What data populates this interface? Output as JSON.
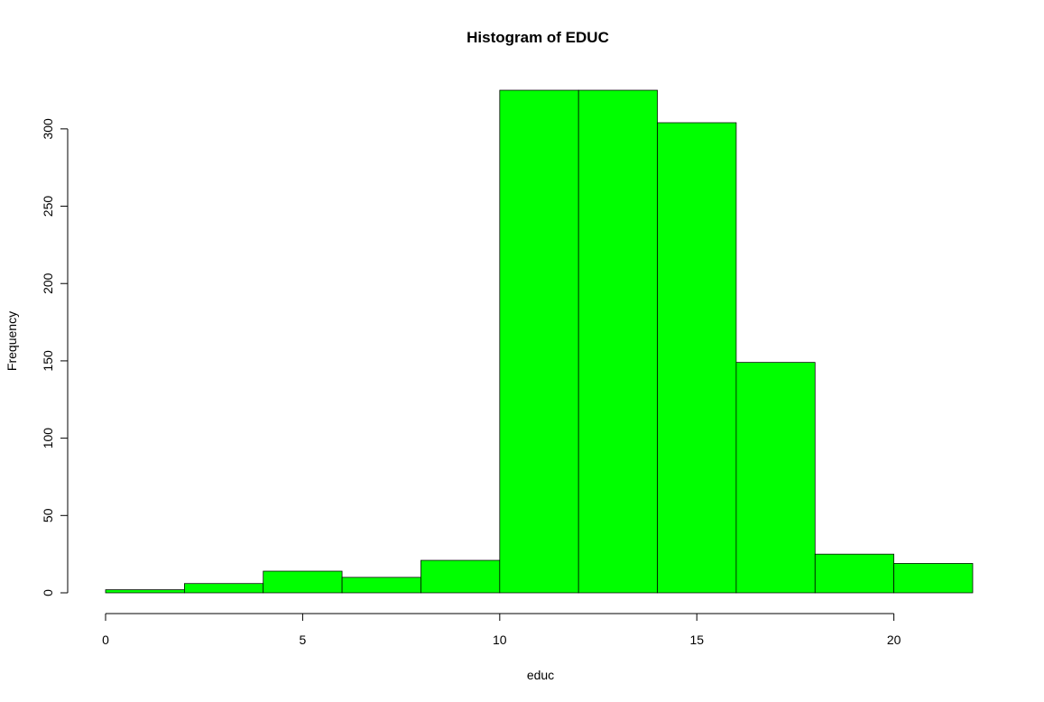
{
  "chart_data": {
    "type": "bar",
    "title": "Histogram of EDUC",
    "xlabel": "educ",
    "ylabel": "Frequency",
    "bin_edges": [
      0,
      2,
      4,
      6,
      8,
      10,
      12,
      14,
      16,
      18,
      20,
      22
    ],
    "values": [
      2,
      6,
      14,
      10,
      21,
      325,
      325,
      304,
      149,
      25,
      19
    ],
    "xlim": [
      0,
      22
    ],
    "ylim": [
      0,
      325
    ],
    "x_ticks": [
      0,
      5,
      10,
      15,
      20
    ],
    "y_ticks": [
      0,
      50,
      100,
      150,
      200,
      250,
      300
    ],
    "bar_color": "#00ff00",
    "grid": false
  }
}
